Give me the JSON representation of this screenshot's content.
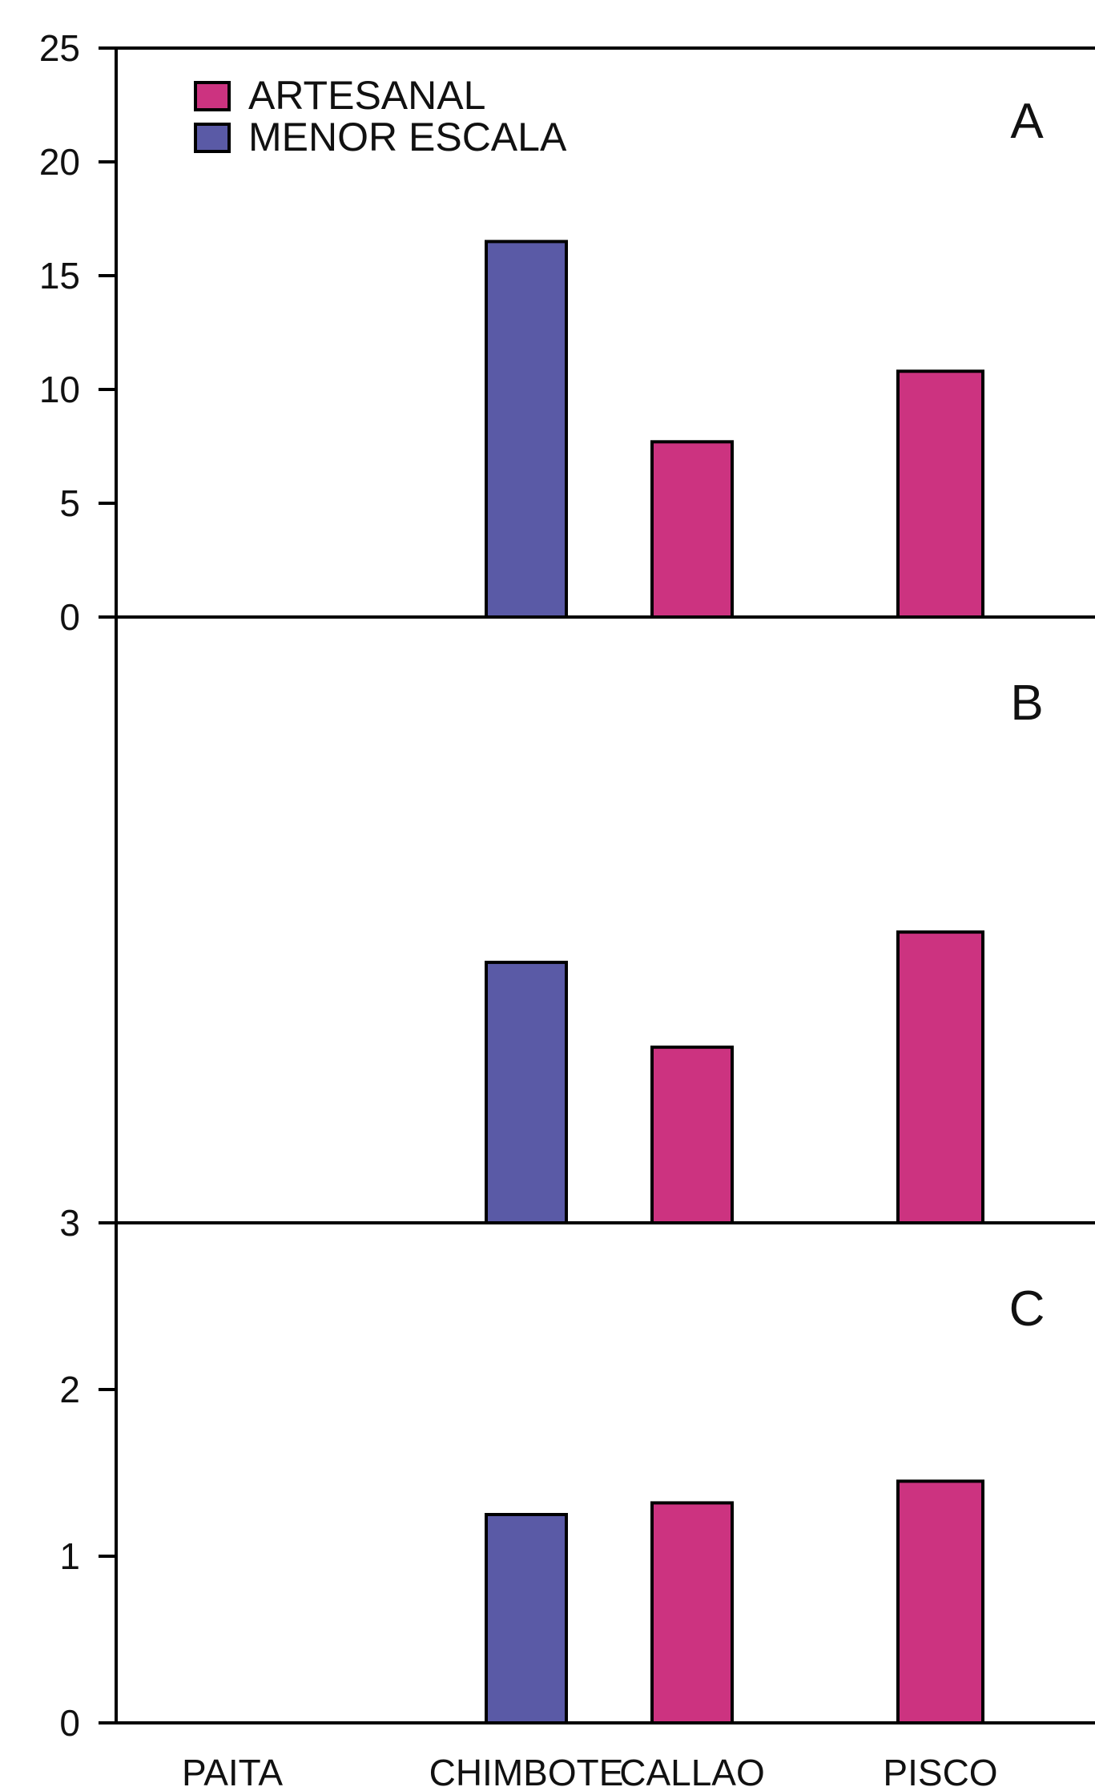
{
  "chart_data": {
    "type": "bar",
    "categories": [
      "PAITA",
      "CHIMBOTE",
      "CALLAO",
      "PISCO"
    ],
    "legend": {
      "entries": [
        {
          "label": "ARTESANAL",
          "color": "#cc3380"
        },
        {
          "label": "MENOR ESCALA",
          "color": "#5a5aa6"
        }
      ],
      "position": "top-left"
    },
    "panels": [
      {
        "letter": "A",
        "ylim": [
          0,
          25
        ],
        "ticks": [
          "0",
          "5",
          "10",
          "15",
          "20",
          "25"
        ],
        "bars": [
          {
            "category": "CHIMBOTE",
            "series": "MENOR ESCALA",
            "value": 16.5
          },
          {
            "category": "CALLAO",
            "series": "ARTESANAL",
            "value": 7.7
          },
          {
            "category": "PISCO",
            "series": "ARTESANAL",
            "value": 10.8
          }
        ]
      },
      {
        "letter": "B",
        "ylim": [
          0,
          100
        ],
        "ticks": [],
        "bars": [
          {
            "category": "CHIMBOTE",
            "series": "MENOR ESCALA",
            "value": 43
          },
          {
            "category": "CALLAO",
            "series": "ARTESANAL",
            "value": 29
          },
          {
            "category": "PISCO",
            "series": "ARTESANAL",
            "value": 48
          }
        ]
      },
      {
        "letter": "C",
        "ylim": [
          0,
          3
        ],
        "ticks": [
          "0",
          "1",
          "2",
          "3"
        ],
        "bars": [
          {
            "category": "CHIMBOTE",
            "series": "MENOR ESCALA",
            "value": 1.25
          },
          {
            "category": "CALLAO",
            "series": "ARTESANAL",
            "value": 1.32
          },
          {
            "category": "PISCO",
            "series": "ARTESANAL",
            "value": 1.45
          }
        ]
      }
    ],
    "grid": false
  }
}
